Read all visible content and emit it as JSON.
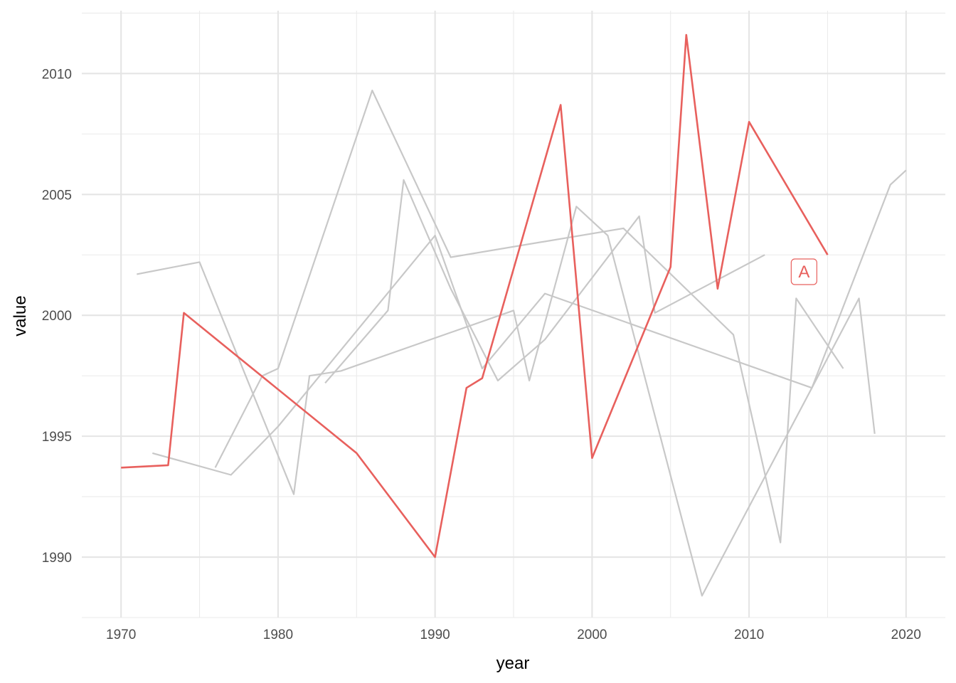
{
  "chart_data": {
    "type": "line",
    "title": "",
    "xlabel": "year",
    "ylabel": "value",
    "xlim": [
      1967.5,
      2022.5
    ],
    "ylim": [
      1987.5,
      2012.6
    ],
    "x_ticks": [
      1970,
      1980,
      1990,
      2000,
      2010,
      2020
    ],
    "y_ticks": [
      1990,
      1995,
      2000,
      2005,
      2010
    ],
    "grid": true,
    "legend": "none",
    "highlight_color": "#e8605d",
    "context_color": "#c8c8c8",
    "series": [
      {
        "name": "A",
        "highlight": true,
        "x": [
          1970,
          1973,
          1974,
          1985,
          1990,
          1992,
          1993,
          1998,
          2000,
          2005,
          2006,
          2008,
          2010,
          2015
        ],
        "y": [
          1993.7,
          1993.8,
          2000.1,
          1994.3,
          1990.0,
          1997.0,
          1997.4,
          2008.7,
          1994.1,
          2002.0,
          2011.6,
          2001.1,
          2008.0,
          2002.5
        ]
      },
      {
        "highlight": false,
        "x": [
          1971,
          1975,
          1981,
          1982,
          1984,
          1995,
          1996,
          1999,
          2001,
          2007,
          2014,
          2019,
          2020
        ],
        "y": [
          2001.7,
          2002.2,
          1992.6,
          1997.5,
          1997.7,
          2000.2,
          1997.3,
          2004.5,
          2003.3,
          1988.4,
          1997.0,
          2005.4,
          2006.0
        ]
      },
      {
        "highlight": false,
        "x": [
          1972,
          1977,
          1980,
          1990,
          1993,
          1997,
          2014,
          2017,
          2018
        ],
        "y": [
          1994.3,
          1993.4,
          1995.4,
          2003.3,
          1997.8,
          2000.9,
          1997.0,
          2000.7,
          1995.1
        ]
      },
      {
        "highlight": false,
        "x": [
          1976,
          1979,
          1980,
          1986,
          1991,
          2002,
          2009,
          2012,
          2013,
          2016
        ],
        "y": [
          1993.7,
          1997.5,
          1997.8,
          2009.3,
          2002.4,
          2003.6,
          1999.2,
          1990.6,
          2000.7,
          1997.8
        ]
      },
      {
        "highlight": false,
        "x": [
          1983,
          1987,
          1988,
          1991,
          1994,
          1997,
          2003,
          2004,
          2011
        ],
        "y": [
          1997.2,
          2000.2,
          2005.6,
          2001.1,
          1997.3,
          1999.0,
          2004.1,
          2000.1,
          2002.5
        ]
      }
    ],
    "annotations": [
      {
        "text": "A",
        "x": 2013.5,
        "y": 2001.8,
        "color": "#e8605d"
      }
    ]
  }
}
